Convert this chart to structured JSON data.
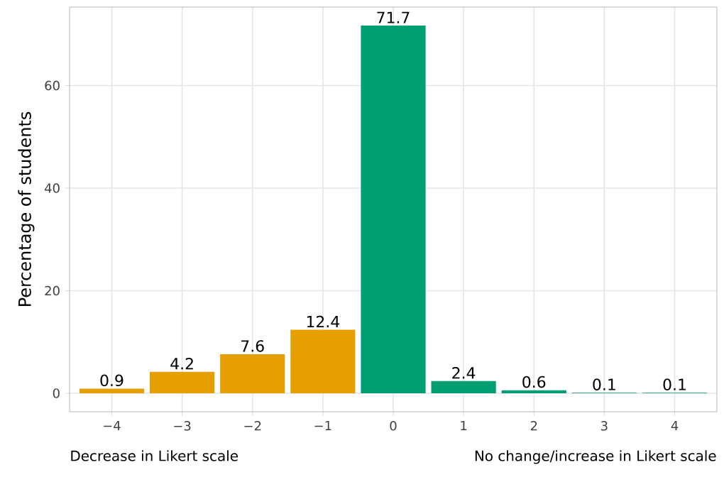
{
  "chart_data": {
    "type": "bar",
    "ylabel": "Percentage of students",
    "categories": [
      "−4",
      "−3",
      "−2",
      "−1",
      "0",
      "1",
      "2",
      "3",
      "4"
    ],
    "values": [
      0.9,
      4.2,
      7.6,
      12.4,
      71.7,
      2.4,
      0.6,
      0.1,
      0.1
    ],
    "colors": [
      "#e69f00",
      "#e69f00",
      "#e69f00",
      "#e69f00",
      "#009e73",
      "#009e73",
      "#009e73",
      "#009e73",
      "#009e73"
    ],
    "ylim": [
      -3.6,
      75.3
    ],
    "yticks": [
      0,
      20,
      40,
      60
    ],
    "grid": true,
    "data_labels": true,
    "annotations": [
      "Decrease in Likert scale",
      "No change/increase in Likert scale"
    ]
  }
}
